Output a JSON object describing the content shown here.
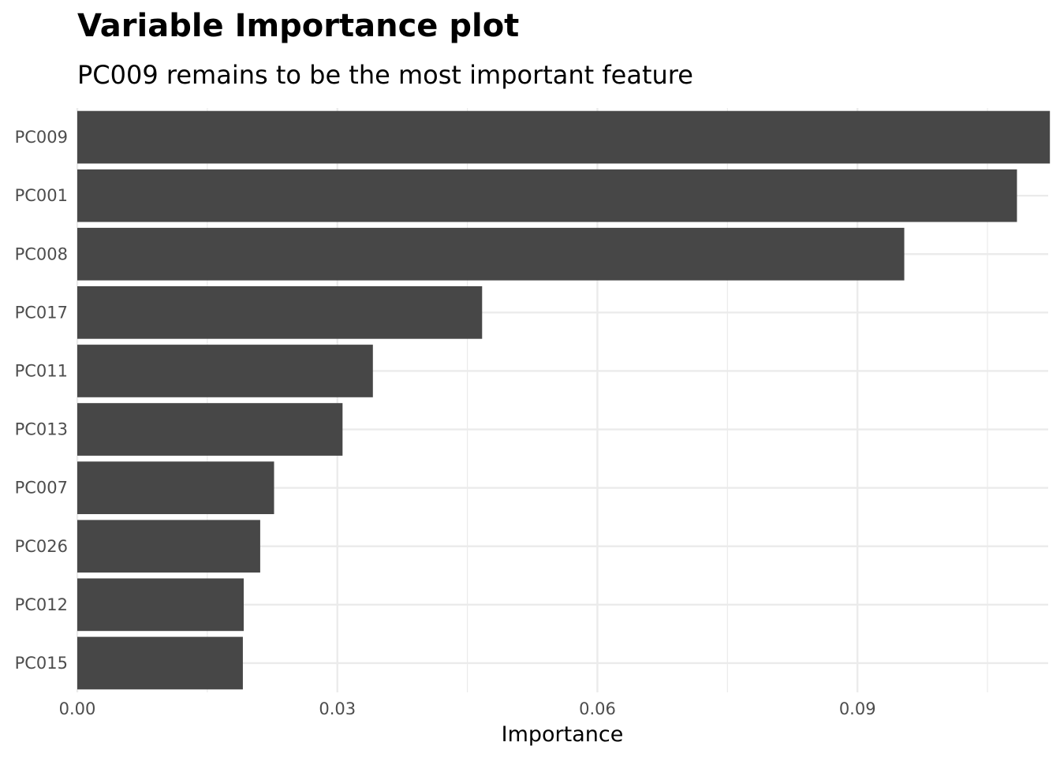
{
  "chart_data": {
    "type": "bar",
    "orientation": "horizontal",
    "title": "Variable Importance plot",
    "subtitle": "PC009 remains to be the most important feature",
    "xlabel": "Importance",
    "ylabel": "",
    "categories": [
      "PC009",
      "PC001",
      "PC008",
      "PC017",
      "PC011",
      "PC013",
      "PC007",
      "PC026",
      "PC012",
      "PC015"
    ],
    "values": [
      0.1122,
      0.1084,
      0.0954,
      0.0467,
      0.0341,
      0.0306,
      0.0227,
      0.0211,
      0.0192,
      0.0191
    ],
    "xlim": [
      0,
      0.112
    ],
    "x_ticks": [
      0.0,
      0.03,
      0.06,
      0.09
    ],
    "x_tick_labels": [
      "0.00",
      "0.03",
      "0.06",
      "0.09"
    ],
    "grid": true,
    "bar_color": "#474747",
    "grid_color": "#ebebeb",
    "legend": "none"
  }
}
